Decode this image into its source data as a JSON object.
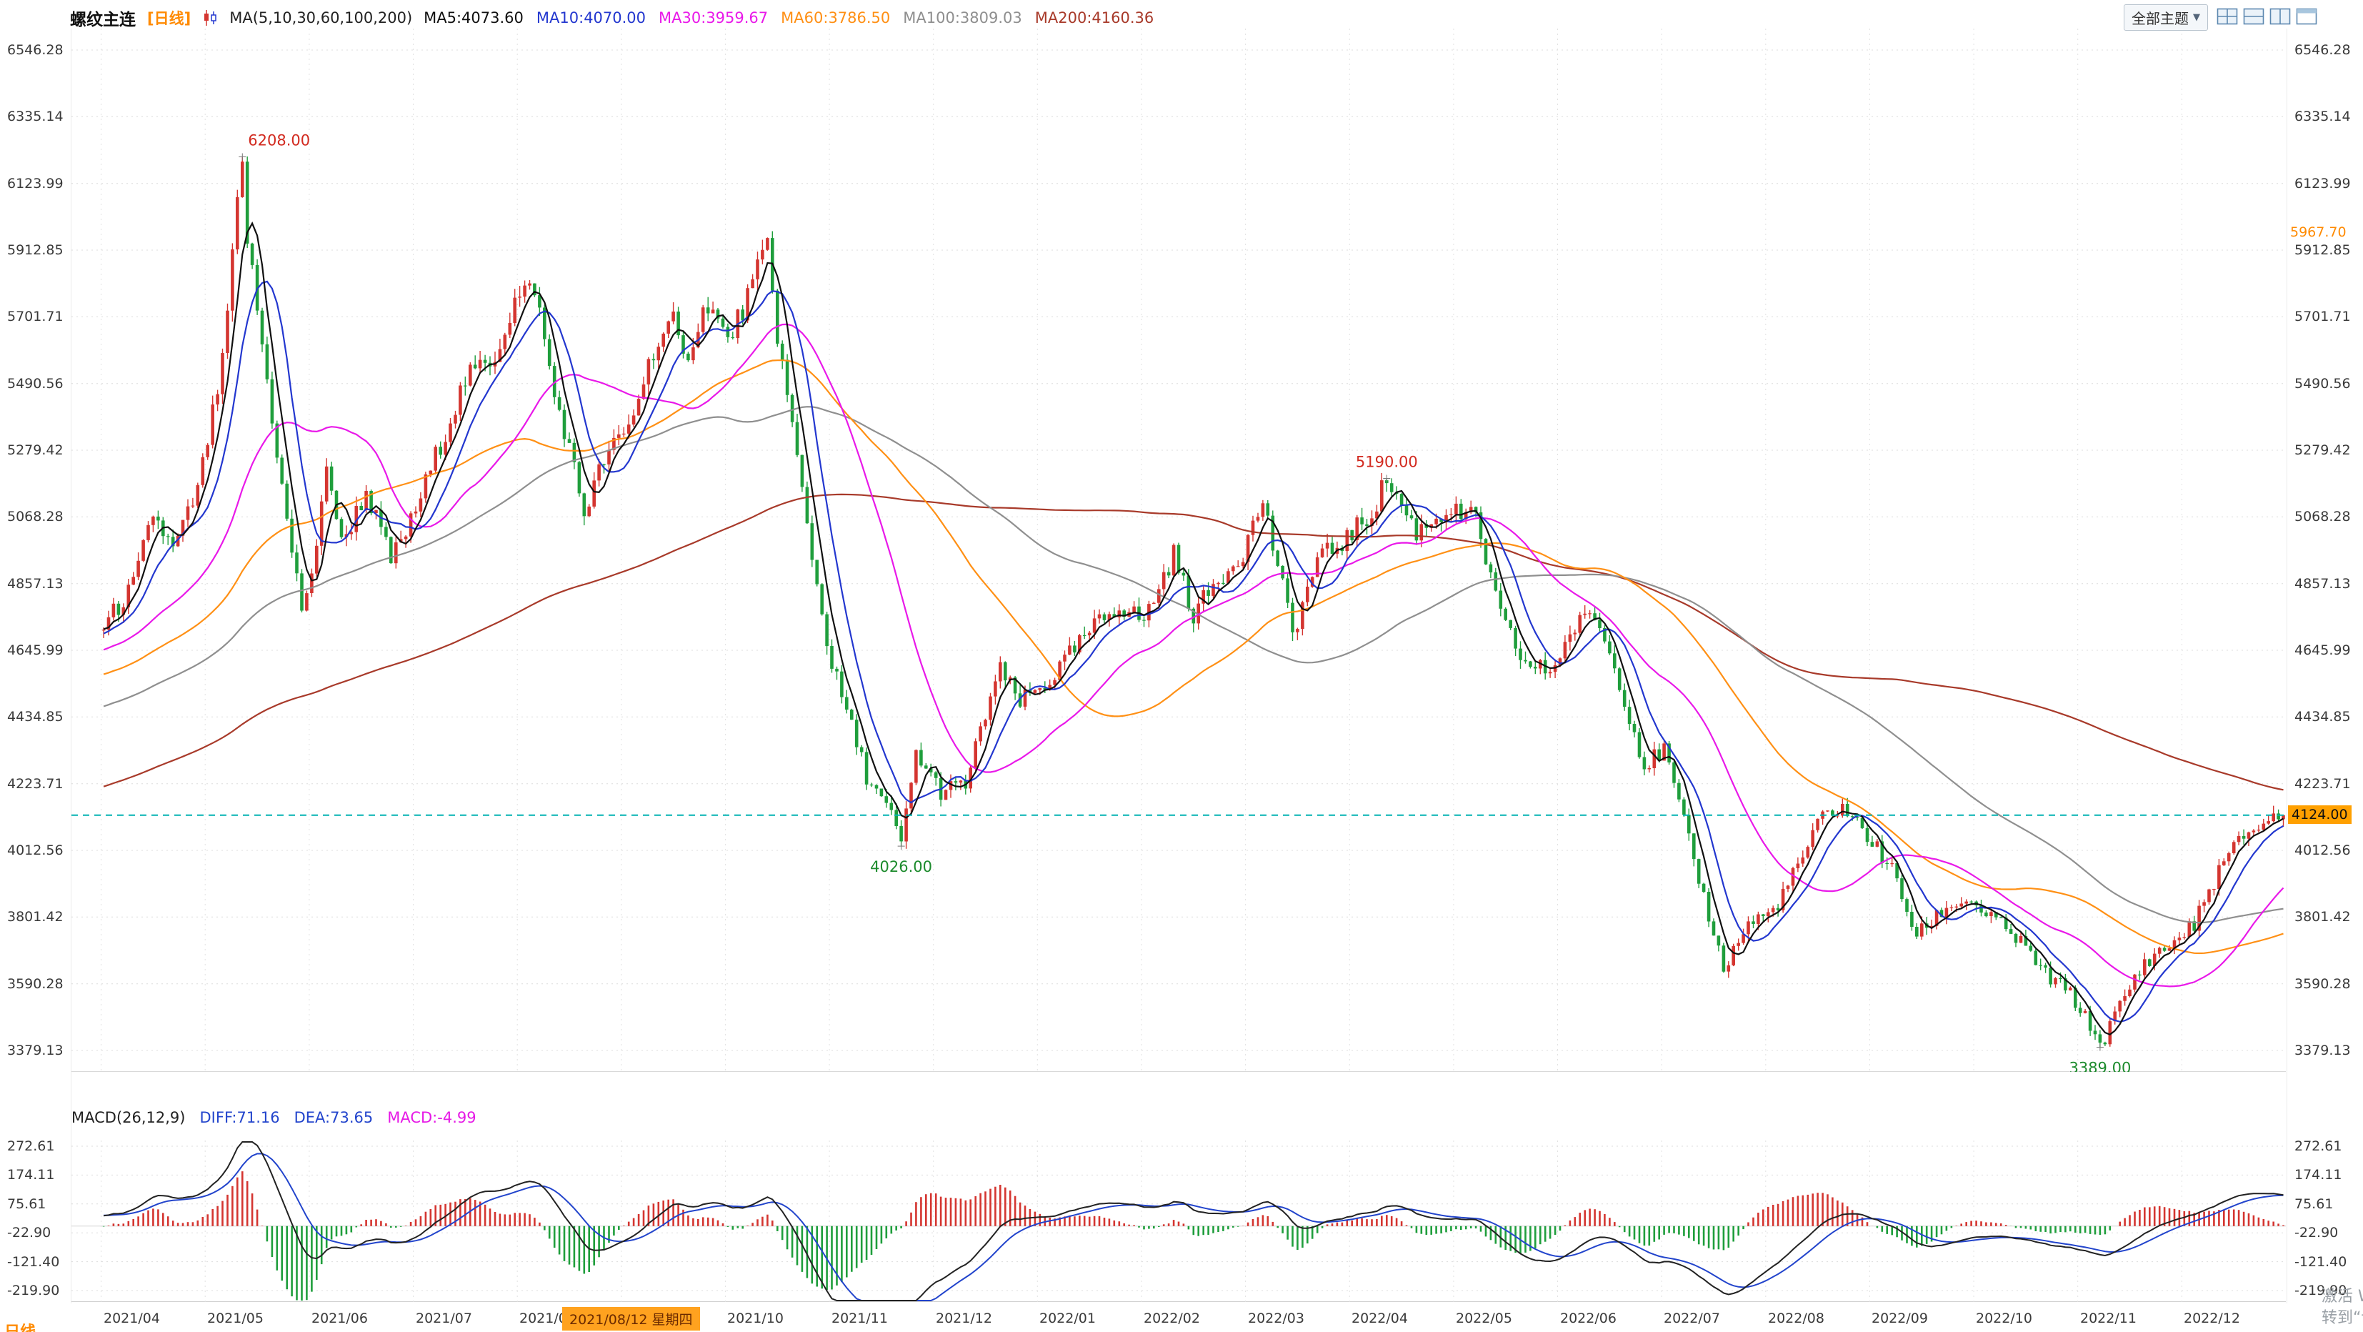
{
  "header": {
    "symbol": "螺纹主连",
    "period": "[日线]",
    "ma_title": "MA(5,10,30,60,100,200)",
    "ma_items": [
      {
        "text": "MA5:4073.60",
        "color": "#101010"
      },
      {
        "text": "MA10:4070.00",
        "color": "#2337cf"
      },
      {
        "text": "MA30:3959.67",
        "color": "#e919e9"
      },
      {
        "text": "MA60:3786.50",
        "color": "#ff9015"
      },
      {
        "text": "MA100:3809.03",
        "color": "#8f8f8f"
      },
      {
        "text": "MA200:4160.36",
        "color": "#a83a2a"
      }
    ]
  },
  "toolbar": {
    "theme_label": "全部主题",
    "caret": "▼",
    "layout_icons": [
      "layout-grid-icon",
      "layout-rows-icon",
      "layout-columns-icon",
      "layout-single-icon"
    ]
  },
  "macd_panel": {
    "items": [
      {
        "text": "MACD(26,12,9)",
        "color": "#222222"
      },
      {
        "text": "DIFF:71.16",
        "color": "#2244cc"
      },
      {
        "text": "DEA:73.65",
        "color": "#2244cc"
      },
      {
        "text": "MACD:-4.99",
        "color": "#e619e6"
      }
    ]
  },
  "date_axis": {
    "crosshair_label": "2021/08/12 星期四"
  },
  "right_axis": {
    "alert_label": "5967.70",
    "last_price_label": "4124.00"
  },
  "footer": {
    "period_tab": "日线"
  },
  "watermark": {
    "line1": "激活 Windows",
    "line2": "转到“设置”以激活 Windows。"
  },
  "chart_data": {
    "type": "candlestick",
    "title": "螺纹主连 日线 (Rebar main continuous, daily) with MA overlays and MACD",
    "x_months": [
      "2021/04",
      "2021/05",
      "2021/06",
      "2021/07",
      "2021/08",
      "2021/09",
      "2021/10",
      "2021/11",
      "2021/12",
      "2022/01",
      "2022/02",
      "2022/03",
      "2022/04",
      "2022/05",
      "2022/06",
      "2022/07",
      "2022/08",
      "2022/09",
      "2022/10",
      "2022/11",
      "2022/12"
    ],
    "trading_days_per_month": 21,
    "lead_in_days": 6,
    "y_axis": {
      "max": 6546.28,
      "min": 3379.13,
      "ticks": [
        "6546.28",
        "6335.14",
        "6123.99",
        "5912.85",
        "5701.71",
        "5490.56",
        "5279.42",
        "5068.28",
        "4857.13",
        "4645.99",
        "4434.85",
        "4223.71",
        "4012.56",
        "3801.42",
        "3590.28",
        "3379.13"
      ]
    },
    "up_color": "#d43530",
    "down_color": "#1f9e3c",
    "last_price": 4124.0,
    "price_alert_level": 5967.7,
    "last_price_line_color": "#00b2b2",
    "key_points": [
      {
        "t": 28,
        "price": 6208.0,
        "kind": "high",
        "label": "6208.00",
        "color": "#d22a1f"
      },
      {
        "t": 161,
        "price": 4026.0,
        "kind": "low",
        "label": "4026.00",
        "color": "#1d8b2d"
      },
      {
        "t": 259,
        "price": 5190.0,
        "kind": "high",
        "label": "5190.00",
        "color": "#d22a1f"
      },
      {
        "t": 403,
        "price": 3389.0,
        "kind": "low",
        "label": "3389.00",
        "color": "#1d8b2d"
      }
    ],
    "price_path": [
      [
        0,
        4720
      ],
      [
        6,
        4850
      ],
      [
        10,
        5080
      ],
      [
        14,
        4960
      ],
      [
        19,
        5150
      ],
      [
        24,
        5550
      ],
      [
        27,
        6050
      ],
      [
        28,
        6208
      ],
      [
        29,
        5950
      ],
      [
        33,
        5500
      ],
      [
        37,
        5050
      ],
      [
        40,
        4780
      ],
      [
        43,
        4950
      ],
      [
        45,
        5250
      ],
      [
        48,
        4980
      ],
      [
        53,
        5150
      ],
      [
        58,
        4930
      ],
      [
        62,
        5050
      ],
      [
        68,
        5300
      ],
      [
        73,
        5500
      ],
      [
        79,
        5580
      ],
      [
        83,
        5750
      ],
      [
        87,
        5800
      ],
      [
        91,
        5450
      ],
      [
        93,
        5350
      ],
      [
        97,
        5080
      ],
      [
        101,
        5250
      ],
      [
        106,
        5350
      ],
      [
        111,
        5600
      ],
      [
        115,
        5680
      ],
      [
        117,
        5560
      ],
      [
        122,
        5750
      ],
      [
        126,
        5620
      ],
      [
        131,
        5800
      ],
      [
        134,
        5930
      ],
      [
        136,
        5650
      ],
      [
        140,
        5250
      ],
      [
        144,
        4850
      ],
      [
        147,
        4600
      ],
      [
        150,
        4450
      ],
      [
        154,
        4250
      ],
      [
        159,
        4120
      ],
      [
        161,
        4026
      ],
      [
        164,
        4320
      ],
      [
        169,
        4200
      ],
      [
        174,
        4220
      ],
      [
        179,
        4500
      ],
      [
        181,
        4580
      ],
      [
        185,
        4480
      ],
      [
        191,
        4550
      ],
      [
        195,
        4630
      ],
      [
        200,
        4720
      ],
      [
        205,
        4790
      ],
      [
        210,
        4740
      ],
      [
        216,
        4950
      ],
      [
        220,
        4760
      ],
      [
        225,
        4870
      ],
      [
        230,
        4960
      ],
      [
        234,
        5120
      ],
      [
        240,
        4700
      ],
      [
        245,
        4930
      ],
      [
        251,
        5000
      ],
      [
        256,
        5080
      ],
      [
        259,
        5190
      ],
      [
        265,
        5020
      ],
      [
        271,
        5090
      ],
      [
        277,
        5060
      ],
      [
        282,
        4750
      ],
      [
        287,
        4600
      ],
      [
        292,
        4580
      ],
      [
        297,
        4720
      ],
      [
        301,
        4760
      ],
      [
        306,
        4550
      ],
      [
        311,
        4280
      ],
      [
        315,
        4330
      ],
      [
        321,
        3980
      ],
      [
        327,
        3640
      ],
      [
        332,
        3780
      ],
      [
        337,
        3820
      ],
      [
        342,
        3960
      ],
      [
        347,
        4120
      ],
      [
        351,
        4150
      ],
      [
        356,
        4060
      ],
      [
        361,
        3950
      ],
      [
        366,
        3740
      ],
      [
        371,
        3820
      ],
      [
        376,
        3860
      ],
      [
        381,
        3800
      ],
      [
        387,
        3720
      ],
      [
        392,
        3620
      ],
      [
        397,
        3560
      ],
      [
        402,
        3430
      ],
      [
        403,
        3389
      ],
      [
        407,
        3520
      ],
      [
        412,
        3660
      ],
      [
        417,
        3710
      ],
      [
        422,
        3780
      ],
      [
        427,
        3950
      ],
      [
        432,
        4060
      ],
      [
        437,
        4110
      ],
      [
        440,
        4124
      ]
    ],
    "overlays": [
      {
        "name": "MA5",
        "window": 5,
        "color": "#101010",
        "value": 4073.6
      },
      {
        "name": "MA10",
        "window": 10,
        "color": "#2337cf",
        "value": 4070.0
      },
      {
        "name": "MA30",
        "window": 30,
        "color": "#e919e9",
        "value": 3959.67
      },
      {
        "name": "MA60",
        "window": 60,
        "color": "#ff9015",
        "value": 3786.5
      },
      {
        "name": "MA100",
        "window": 100,
        "color": "#8f8f8f",
        "value": 3809.03
      },
      {
        "name": "MA200",
        "window": 200,
        "color": "#a83a2a",
        "value": 4160.36
      }
    ],
    "macd": {
      "params": [
        26,
        12,
        9
      ],
      "diff": 71.16,
      "dea": 73.65,
      "macd": -4.99,
      "y_ticks": [
        "272.61",
        "174.11",
        "75.61",
        "-22.90",
        "-121.40",
        "-219.90"
      ],
      "diff_color": "#222222",
      "dea_color": "#2244cc",
      "hist_up_color": "#d43530",
      "hist_down_color": "#1f9e3c"
    }
  }
}
